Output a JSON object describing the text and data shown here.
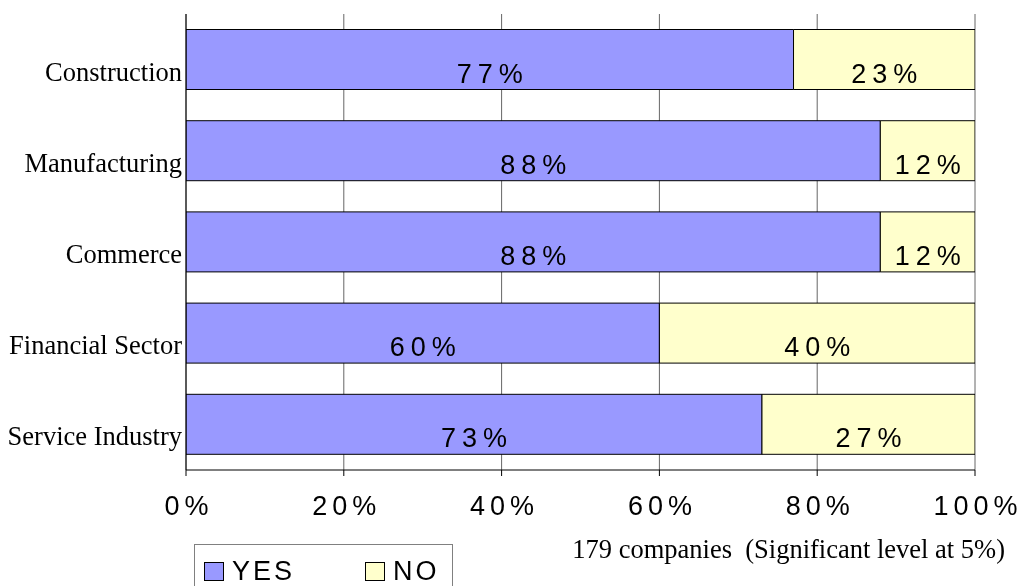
{
  "chart_data": {
    "type": "bar",
    "orientation": "horizontal",
    "stacked": true,
    "categories": [
      "Construction",
      "Manufacturing",
      "Commerce",
      "Financial Sector",
      "Service Industry"
    ],
    "series": [
      {
        "name": "YES",
        "color": "#9999ff",
        "values": [
          77,
          88,
          88,
          60,
          73
        ],
        "value_labels": [
          "77%",
          "88%",
          "88%",
          "60%",
          "73%"
        ]
      },
      {
        "name": "NO",
        "color": "#ffffcc",
        "values": [
          23,
          12,
          12,
          40,
          27
        ],
        "value_labels": [
          "23%",
          "12%",
          "12%",
          "40%",
          "27%"
        ]
      }
    ],
    "xlim": [
      0,
      100
    ],
    "xticks": [
      {
        "value": 0,
        "label": "0%"
      },
      {
        "value": 20,
        "label": "20%"
      },
      {
        "value": 40,
        "label": "40%"
      },
      {
        "value": 60,
        "label": "60%"
      },
      {
        "value": 80,
        "label": "80%"
      },
      {
        "value": 100,
        "label": "100%"
      }
    ],
    "grid": "x",
    "legend": "bottom left",
    "annotations": [
      "179 companies  (Significant level at 5%)"
    ]
  }
}
